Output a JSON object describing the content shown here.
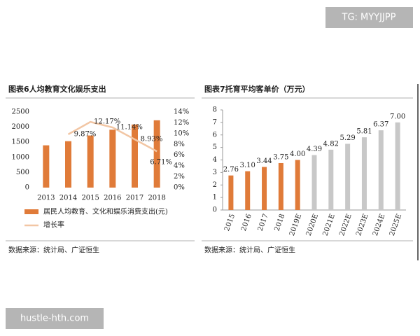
{
  "watermarks": [
    "TG: MYYJJPP",
    "hustle-hth.com"
  ],
  "chart_data": [
    {
      "type": "bar",
      "title": "图表6人均教育文化娱乐支出",
      "source": "数据来源：统计局、广证恒生",
      "categories": [
        "2013",
        "2014",
        "2015",
        "2016",
        "2017",
        "2018"
      ],
      "series": [
        {
          "name": "居民人均教育、文化和娱乐消费支出(元)",
          "type": "bar",
          "color": "#e07b39",
          "values": [
            1398,
            1535,
            1723,
            1915,
            2086,
            2226
          ]
        },
        {
          "name": "增长率",
          "type": "line",
          "axis": "y2",
          "color": "#f2c6a4",
          "values": [
            null,
            9.87,
            12.17,
            11.14,
            8.93,
            6.71
          ],
          "value_labels": [
            null,
            "9.87%",
            "12.17%",
            "11.14%",
            "8.93%",
            "6.71%"
          ]
        }
      ],
      "ylim": [
        0,
        2500
      ],
      "yticks": [
        0,
        500,
        1000,
        1500,
        2000,
        2500
      ],
      "y2lim": [
        0,
        14
      ],
      "y2ticks": [
        {
          "value": 0,
          "label": "0%"
        },
        {
          "value": 2,
          "label": "2%"
        },
        {
          "value": 4,
          "label": "4%"
        },
        {
          "value": 6,
          "label": "6%"
        },
        {
          "value": 8,
          "label": "8%"
        },
        {
          "value": 10,
          "label": "10%"
        },
        {
          "value": 12,
          "label": "12%"
        },
        {
          "value": 14,
          "label": "14%"
        }
      ],
      "legend": "bottom"
    },
    {
      "type": "bar",
      "title": "图表7托育平均客单价（万元）",
      "source": "数据来源：统计局、广证恒生",
      "categories": [
        "2015",
        "2016",
        "2017",
        "2018",
        "2019E",
        "2020E",
        "2021E",
        "2022E",
        "2023E",
        "2024E",
        "2025E"
      ],
      "values": [
        2.76,
        3.1,
        3.44,
        3.75,
        4.0,
        4.39,
        4.82,
        5.29,
        5.81,
        6.37,
        7.0
      ],
      "value_labels": [
        "2.76",
        "3.10",
        "3.44",
        "3.75",
        "4.00",
        "4.39",
        "4.82",
        "5.29",
        "5.81",
        "6.37",
        "7.00"
      ],
      "colors": [
        "#e07b39",
        "#e07b39",
        "#e07b39",
        "#e07b39",
        "#e07b39",
        "#c8c8c8",
        "#c8c8c8",
        "#c8c8c8",
        "#c8c8c8",
        "#c8c8c8",
        "#c8c8c8"
      ],
      "ylim": [
        0,
        8
      ],
      "yticks": [
        0,
        1,
        2,
        3,
        4,
        5,
        6,
        7,
        8
      ]
    }
  ]
}
